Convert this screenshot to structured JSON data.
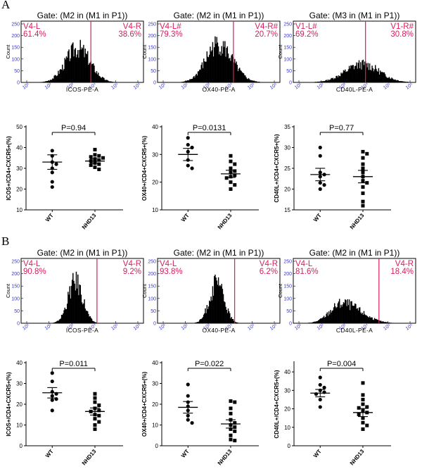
{
  "panels": [
    {
      "letter": "A",
      "histograms": [
        {
          "gate": "Gate: (M2 in (M1 in P1))",
          "left_label": "V4-L",
          "left_pct": "61.4%",
          "right_label": "V4-R",
          "right_pct": "38.6%",
          "xlabel": "ICOS-PE-A",
          "ylabel": "Count",
          "peak": 0.46,
          "spread": 0.1,
          "height": 0.72,
          "skew": 0.0,
          "gate_pos": 0.57
        },
        {
          "gate": "Gate: (M2 in (M1 in P1))",
          "left_label": "V4-L#",
          "left_pct": "79.3%",
          "right_label": "V4-R#",
          "right_pct": "20.7%",
          "xlabel": "OX40-PE-A",
          "ylabel": "Count",
          "peak": 0.49,
          "spread": 0.1,
          "height": 0.8,
          "skew": 0.05,
          "gate_pos": 0.62
        },
        {
          "gate": "Gate: (M3 in (M1 in P1))",
          "left_label": "V1-L#",
          "left_pct": "69.2%",
          "right_label": "V1-R#",
          "right_pct": "30.8%",
          "xlabel": "CD40L-PE-A",
          "ylabel": "Count",
          "peak": 0.56,
          "spread": 0.14,
          "height": 0.38,
          "skew": 0.0,
          "gate_pos": 0.59
        }
      ],
      "scatters": [
        {
          "ylabel": "ICOS+/CD4+CXCR5+(%)",
          "pvalue": "P=0.94",
          "yticks": [
            "10",
            "20",
            "30",
            "40",
            "50"
          ],
          "ylim": [
            10,
            50
          ],
          "categories": [
            "WT",
            "NHD13"
          ],
          "groups": [
            {
              "mean": 33.0,
              "sem": 3.5,
              "values": [
                38.5,
                36,
                33,
                30,
                28,
                23.5,
                21,
                32
              ]
            },
            {
              "mean": 33.5,
              "sem": 1.0,
              "values": [
                39,
                36.5,
                36,
                35.5,
                35,
                34.5,
                34,
                33.5,
                32.5,
                32,
                31.5,
                30.5,
                29.5
              ]
            }
          ]
        },
        {
          "ylabel": "OX40+/CD4+CXCR5+(%)",
          "pvalue": "P=0.0131",
          "yticks": [
            "10",
            "20",
            "30",
            "40"
          ],
          "ylim": [
            10,
            40
          ],
          "categories": [
            "WT",
            "NHD13"
          ],
          "groups": [
            {
              "mean": 30.0,
              "sem": 2.2,
              "values": [
                36,
                33.5,
                32.5,
                31,
                28,
                26,
                25
              ]
            },
            {
              "mean": 23.0,
              "sem": 1.3,
              "values": [
                29.5,
                27.5,
                26.5,
                25,
                24,
                23.5,
                22.5,
                22,
                21.5,
                20,
                19,
                17.5
              ]
            }
          ]
        },
        {
          "ylabel": "CD40L+/CD4+CXCR5+(%)",
          "pvalue": "P=0.77",
          "yticks": [
            "15",
            "20",
            "25",
            "30",
            "35"
          ],
          "ylim": [
            15,
            35
          ],
          "categories": [
            "WT",
            "NHD13"
          ],
          "groups": [
            {
              "mean": 23.5,
              "sem": 1.5,
              "values": [
                30,
                28,
                24,
                23.5,
                23,
                21.5,
                21,
                20
              ]
            },
            {
              "mean": 23.0,
              "sem": 1.5,
              "values": [
                29,
                28.5,
                27.5,
                26,
                25,
                24,
                23,
                22,
                21.5,
                20.5,
                19,
                17,
                16
              ]
            }
          ]
        }
      ]
    },
    {
      "letter": "B",
      "histograms": [
        {
          "gate": "Gate: (M2 in (M1 in P1))",
          "left_label": "V4-L",
          "left_pct": "90.8%",
          "right_label": "V4-R",
          "right_pct": "9.2%",
          "xlabel": "ICOS-PE-A",
          "ylabel": "Count",
          "peak": 0.44,
          "spread": 0.06,
          "height": 0.82,
          "skew": 0.0,
          "gate_pos": 0.62
        },
        {
          "gate": "Gate: (M2 in (M1 in P1))",
          "left_label": "V4-L",
          "left_pct": "93.8%",
          "right_label": "V4-R",
          "right_pct": "6.2%",
          "xlabel": "OX40-PE-A",
          "ylabel": "Count",
          "peak": 0.48,
          "spread": 0.06,
          "height": 0.78,
          "skew": 0.0,
          "gate_pos": 0.63
        },
        {
          "gate": "Gate: (M2 in (M1 in P1))",
          "left_label": "V4-L",
          "left_pct": "81.6%",
          "right_label": "V4-R",
          "right_pct": "18.4%",
          "xlabel": "CD40L-PE-A",
          "ylabel": "Count",
          "peak": 0.4,
          "spread": 0.1,
          "height": 0.4,
          "skew": 0.15,
          "gate_pos": 0.7
        }
      ],
      "scatters": [
        {
          "ylabel": "ICOS+/CD4+CXCR5+(%)",
          "pvalue": "P=0.011",
          "yticks": [
            "0",
            "10",
            "20",
            "30",
            "40"
          ],
          "ylim": [
            0,
            40
          ],
          "categories": [
            "WT",
            "NHD13"
          ],
          "groups": [
            {
              "mean": 25.5,
              "sem": 2.5,
              "values": [
                35,
                31,
                26,
                25,
                24,
                22.5,
                22,
                17
              ]
            },
            {
              "mean": 16.5,
              "sem": 1.7,
              "values": [
                25,
                23,
                21,
                19.5,
                18,
                17,
                16.5,
                15,
                14.5,
                13,
                11.5,
                10,
                8
              ]
            }
          ]
        },
        {
          "ylabel": "OX40+/CD4+CXCR5+(%)",
          "pvalue": "P=0.022",
          "yticks": [
            "0",
            "10",
            "20",
            "30",
            "40"
          ],
          "ylim": [
            0,
            40
          ],
          "categories": [
            "WT",
            "NHD13"
          ],
          "groups": [
            {
              "mean": 18.5,
              "sem": 2.8,
              "values": [
                29.5,
                24,
                21,
                19,
                17,
                14.5,
                12.5,
                11
              ]
            },
            {
              "mean": 10.5,
              "sem": 2.0,
              "values": [
                21.5,
                21,
                18,
                15.5,
                12.5,
                11,
                10,
                9,
                8,
                7,
                5,
                3,
                2.5
              ]
            }
          ]
        },
        {
          "ylabel": "CD40L+/CD4+CXCR5+(%)",
          "pvalue": "P=0.004",
          "yticks": [
            "0",
            "10",
            "20",
            "30",
            "40"
          ],
          "ylim": [
            0,
            45
          ],
          "categories": [
            "WT",
            "NHD13"
          ],
          "groups": [
            {
              "mean": 28.5,
              "sem": 2.0,
              "values": [
                37,
                33,
                31.5,
                30,
                29,
                28,
                25,
                21
              ]
            },
            {
              "mean": 18.0,
              "sem": 2.2,
              "values": [
                34,
                27.5,
                25,
                22.5,
                21,
                20.5,
                19,
                18,
                17,
                15,
                12.5,
                11,
                9
              ]
            }
          ]
        }
      ]
    }
  ],
  "flow_xticks": [
    "10¹",
    "10²",
    "10³",
    "10⁴",
    "10⁵",
    "10⁶"
  ],
  "flow_yticks": [
    "0",
    "50",
    "100",
    "150",
    "200",
    "250"
  ],
  "colors": {
    "gate_line": "#d6205a",
    "tick_text": "#3a3acc",
    "hist_fill": "#000000",
    "frame": "#000000"
  }
}
